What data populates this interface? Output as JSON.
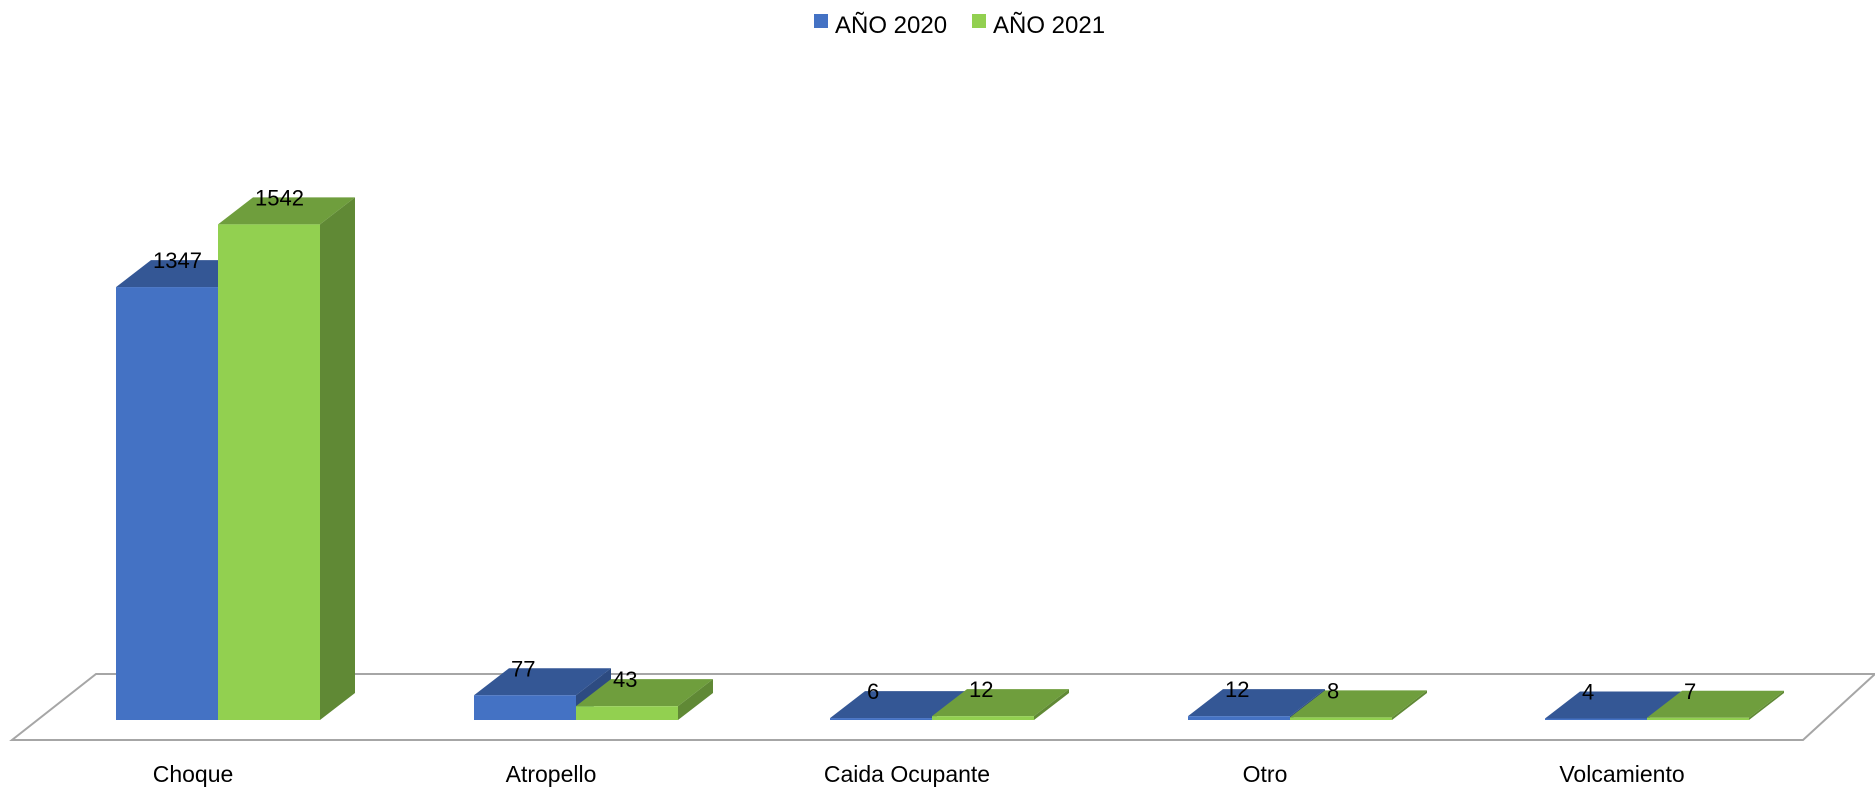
{
  "chart_data": {
    "type": "bar",
    "categories": [
      "Choque",
      "Atropello",
      "Caida Ocupante",
      "Otro",
      "Volcamiento"
    ],
    "series": [
      {
        "name": "AÑO 2020",
        "values": [
          1347,
          77,
          6,
          12,
          4
        ],
        "color": "#4472c4"
      },
      {
        "name": "AÑO 2021",
        "values": [
          1542,
          43,
          12,
          8,
          7
        ],
        "color": "#92d050"
      }
    ],
    "title": "",
    "xlabel": "",
    "ylabel": "",
    "ylim": [
      0,
      1600
    ],
    "grid": false,
    "legend_position": "top-center",
    "style": "3d-columns"
  }
}
